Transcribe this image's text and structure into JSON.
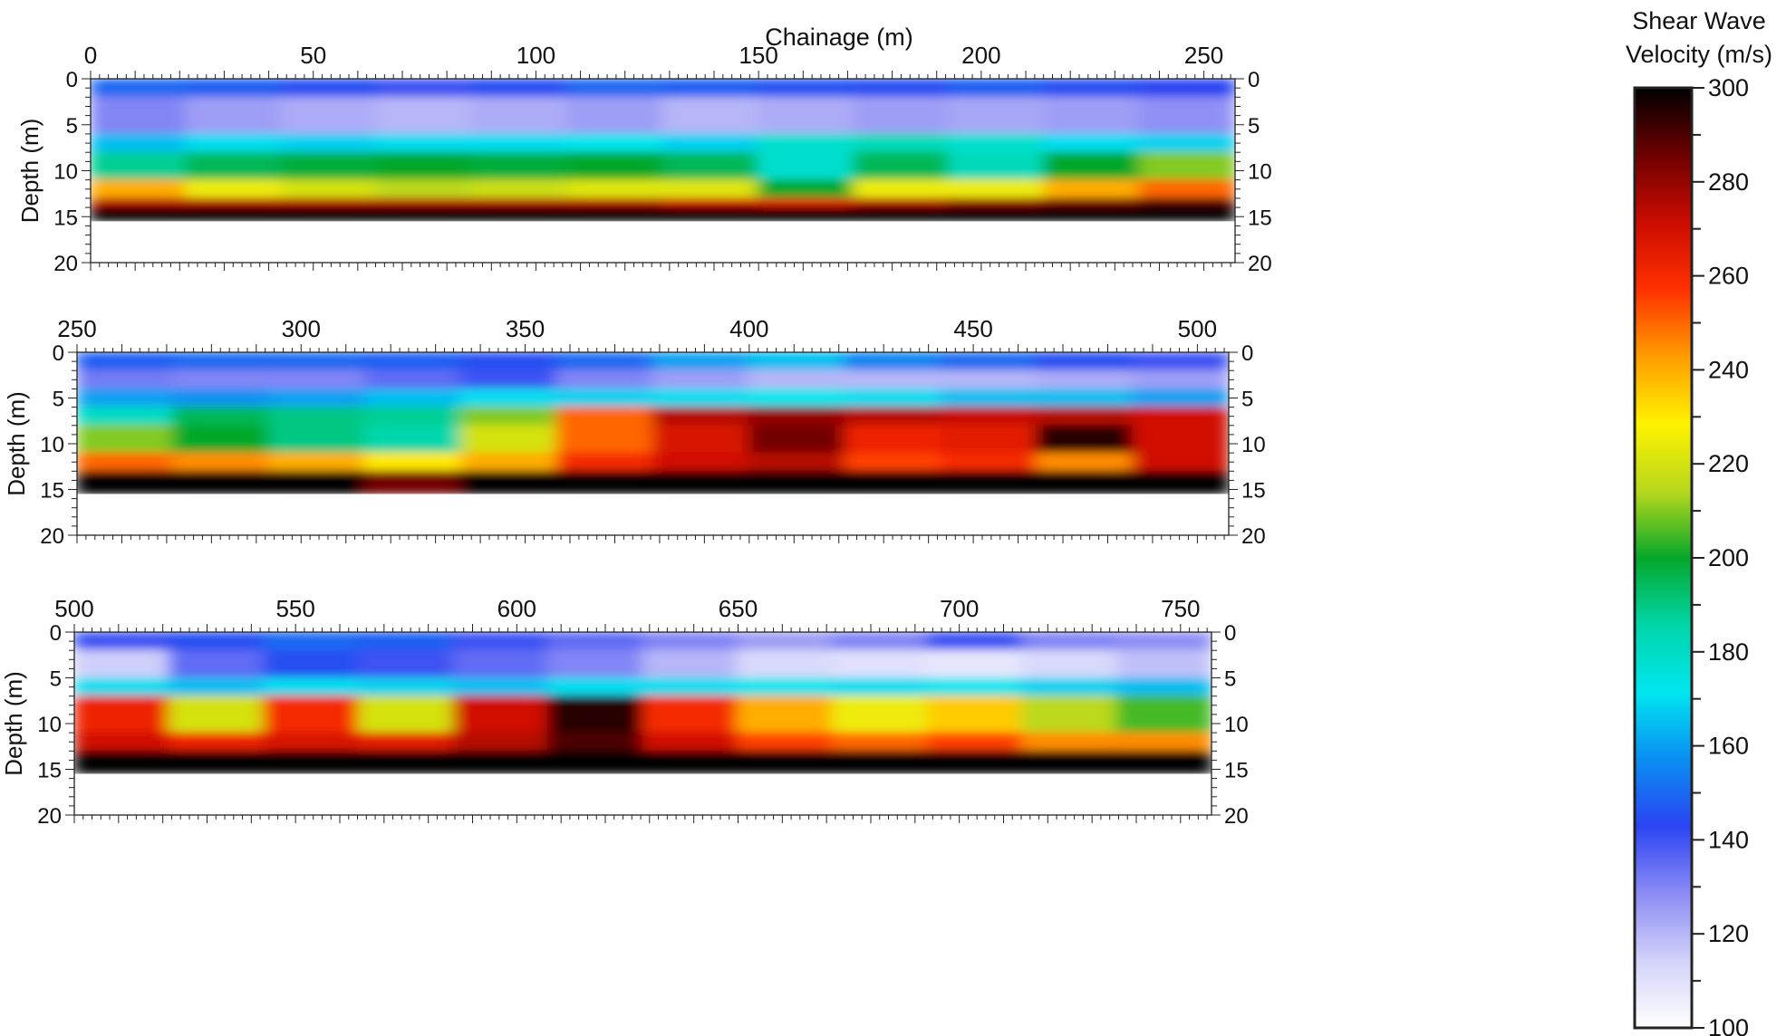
{
  "chart_data": {
    "type": "heatmap",
    "x_title": "Chainage (m)",
    "y_title": "Depth (m)",
    "colorbar": {
      "title_line1": "Shear Wave",
      "title_line2": "Velocity (m/s)",
      "range": [
        100,
        300
      ],
      "ticks": [
        "300",
        "280",
        "260",
        "240",
        "220",
        "200",
        "180",
        "160",
        "140",
        "120",
        "100"
      ],
      "colors": [
        "#ffffff",
        "#d2d2fa",
        "#8c8cf5",
        "#2a44f2",
        "#0a8ef2",
        "#00e6f0",
        "#00d6a8",
        "#06a82a",
        "#b8d81c",
        "#fff200",
        "#ff9c00",
        "#ff3000",
        "#cc0c00",
        "#6e0000",
        "#000000"
      ]
    },
    "panels": [
      {
        "x_range": [
          0,
          257
        ],
        "x_ticks": [
          "0",
          "50",
          "100",
          "150",
          "200",
          "250"
        ],
        "y_range": [
          0,
          20
        ],
        "y_ticks": [
          "0",
          "5",
          "10",
          "15",
          "20"
        ],
        "model_depth_m": 15.5,
        "layers_velocity_mps": [
          {
            "depth_m": [
              0,
              2
            ],
            "values": [
              150,
              148,
              145,
              140,
              145,
              150,
              148,
              146,
              145,
              148,
              145,
              143
            ]
          },
          {
            "depth_m": [
              2,
              6
            ],
            "values": [
              130,
              125,
              122,
              120,
              122,
              125,
              120,
              122,
              125,
              123,
              125,
              128
            ]
          },
          {
            "depth_m": [
              6,
              8
            ],
            "values": [
              165,
              170,
              168,
              170,
              170,
              172,
              168,
              178,
              182,
              178,
              170,
              168
            ]
          },
          {
            "depth_m": [
              8,
              11
            ],
            "values": [
              188,
              195,
              198,
              200,
              198,
              200,
              195,
              178,
              195,
              182,
              200,
              210
            ]
          },
          {
            "depth_m": [
              11,
              13
            ],
            "values": [
              240,
              225,
              220,
              215,
              218,
              222,
              222,
              200,
              225,
              225,
              240,
              250
            ]
          },
          {
            "depth_m": [
              13,
              14
            ],
            "values": [
              275,
              275,
              275,
              275,
              275,
              275,
              270,
              265,
              275,
              280,
              285,
              290
            ]
          },
          {
            "depth_m": [
              14,
              15.5
            ],
            "values": [
              300,
              300,
              300,
              300,
              300,
              300,
              300,
              300,
              300,
              300,
              300,
              300
            ]
          }
        ]
      },
      {
        "x_range": [
          250,
          507
        ],
        "x_ticks": [
          "250",
          "300",
          "350",
          "400",
          "450",
          "500"
        ],
        "y_range": [
          0,
          20
        ],
        "y_ticks": [
          "0",
          "5",
          "10",
          "15",
          "20"
        ],
        "model_depth_m": 15.5,
        "layers_velocity_mps": [
          {
            "depth_m": [
              0,
              2
            ],
            "values": [
              148,
              150,
              150,
              148,
              145,
              150,
              160,
              165,
              155,
              150,
              145,
              140
            ]
          },
          {
            "depth_m": [
              2,
              4
            ],
            "values": [
              132,
              130,
              130,
              135,
              140,
              130,
              125,
              120,
              120,
              120,
              122,
              125
            ]
          },
          {
            "depth_m": [
              4,
              6
            ],
            "values": [
              160,
              158,
              160,
              165,
              170,
              168,
              170,
              172,
              170,
              165,
              165,
              160
            ]
          },
          {
            "depth_m": [
              6,
              8
            ],
            "values": [
              180,
              195,
              190,
              188,
              210,
              250,
              275,
              280,
              275,
              272,
              275,
              270
            ]
          },
          {
            "depth_m": [
              8,
              11
            ],
            "values": [
              210,
              200,
              190,
              185,
              220,
              250,
              268,
              285,
              262,
              265,
              295,
              270
            ]
          },
          {
            "depth_m": [
              11,
              13
            ],
            "values": [
              250,
              245,
              240,
              230,
              240,
              260,
              270,
              275,
              255,
              260,
              245,
              270
            ]
          },
          {
            "depth_m": [
              13,
              15.5
            ],
            "values": [
              300,
              300,
              300,
              285,
              300,
              300,
              300,
              300,
              300,
              300,
              300,
              300
            ]
          }
        ]
      },
      {
        "x_range": [
          500,
          757
        ],
        "x_ticks": [
          "500",
          "550",
          "600",
          "650",
          "700",
          "750"
        ],
        "y_range": [
          0,
          20
        ],
        "y_ticks": [
          "0",
          "5",
          "10",
          "15",
          "20"
        ],
        "model_depth_m": 15.5,
        "layers_velocity_mps": [
          {
            "depth_m": [
              0,
              2
            ],
            "values": [
              140,
              145,
              150,
              148,
              140,
              135,
              130,
              125,
              130,
              140,
              130,
              128
            ]
          },
          {
            "depth_m": [
              2,
              5
            ],
            "values": [
              115,
              135,
              145,
              140,
              135,
              130,
              120,
              112,
              110,
              108,
              112,
              118
            ]
          },
          {
            "depth_m": [
              5,
              7
            ],
            "values": [
              170,
              165,
              170,
              168,
              165,
              170,
              170,
              172,
              170,
              172,
              168,
              165
            ]
          },
          {
            "depth_m": [
              7,
              11
            ],
            "values": [
              262,
              220,
              260,
              220,
              270,
              295,
              260,
              240,
              225,
              235,
              215,
              205
            ]
          },
          {
            "depth_m": [
              11,
              13
            ],
            "values": [
              270,
              262,
              268,
              265,
              275,
              290,
              270,
              255,
              250,
              255,
              245,
              245
            ]
          },
          {
            "depth_m": [
              13,
              15.5
            ],
            "values": [
              300,
              300,
              300,
              300,
              300,
              300,
              300,
              300,
              300,
              300,
              300,
              300
            ]
          }
        ]
      }
    ]
  }
}
